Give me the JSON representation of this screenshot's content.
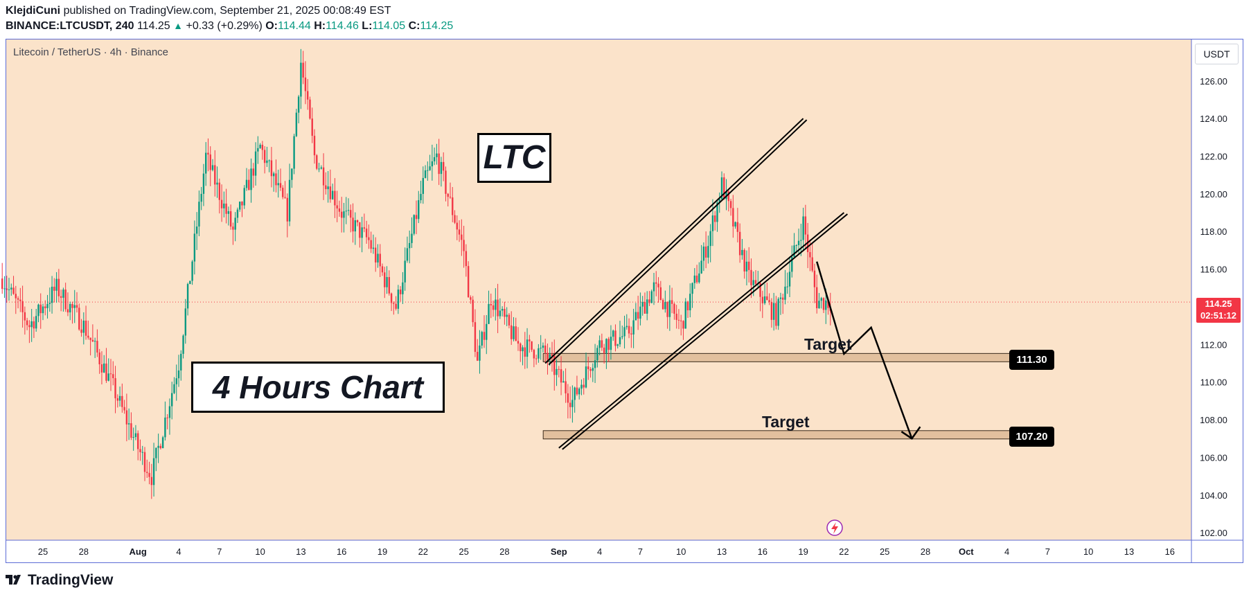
{
  "header": {
    "author": "KlejdiCuni",
    "published_text": "published on TradingView.com, September 21, 2025 00:08:49 EST",
    "symbol": "BINANCE:LTCUSDT, 240",
    "last": "114.25",
    "change": "+0.33 (+0.29%)",
    "o_label": "O:",
    "o": "114.44",
    "h_label": "H:",
    "h": "114.46",
    "l_label": "L:",
    "l": "114.05",
    "c_label": "C:",
    "c": "114.25"
  },
  "legend": "Litecoin / TetherUS · 4h · Binance",
  "currency": "USDT",
  "annotations": {
    "title": "LTC",
    "subtitle": "4 Hours Chart",
    "target1_label": "Target",
    "target2_label": "Target",
    "target1_value": "111.30",
    "target2_value": "107.20"
  },
  "price_tag": {
    "price": "114.25",
    "countdown": "02:51:12"
  },
  "footer": {
    "brand": "TradingView"
  },
  "colors": {
    "background": "#fbe3ca",
    "up": "#089981",
    "down": "#f23645",
    "zone": "#d9b48f",
    "frame": "#5b6bd6"
  },
  "icons": [
    "tradingview-logo-icon",
    "lightning-icon"
  ],
  "chart_data": {
    "type": "candlestick",
    "symbol": "LTCUSDT",
    "interval": "4h",
    "ylim": [
      101.6,
      128.2
    ],
    "y_ticks": [
      "102.00",
      "104.00",
      "106.00",
      "108.00",
      "110.00",
      "112.00",
      "114.00",
      "116.00",
      "118.00",
      "120.00",
      "122.00",
      "124.00",
      "126.00"
    ],
    "x_ticks": [
      "25",
      "28",
      "Aug",
      "4",
      "7",
      "10",
      "13",
      "16",
      "19",
      "22",
      "25",
      "28",
      "Sep",
      "4",
      "7",
      "10",
      "13",
      "16",
      "19",
      "22",
      "25",
      "28",
      "Oct",
      "4",
      "7",
      "10",
      "13",
      "16"
    ],
    "current_price": 114.25,
    "key_closes": [
      {
        "x": "Jul 22",
        "y": 115.5
      },
      {
        "x": "Jul 24",
        "y": 113.0
      },
      {
        "x": "Jul 26",
        "y": 115.0
      },
      {
        "x": "Jul 28",
        "y": 113.0
      },
      {
        "x": "Jul 30",
        "y": 110.0
      },
      {
        "x": "Aug 1",
        "y": 106.5
      },
      {
        "x": "Aug 2",
        "y": 105.0
      },
      {
        "x": "Aug 4",
        "y": 111.0
      },
      {
        "x": "Aug 6",
        "y": 122.0
      },
      {
        "x": "Aug 8",
        "y": 118.0
      },
      {
        "x": "Aug 10",
        "y": 122.5
      },
      {
        "x": "Aug 12",
        "y": 119.0
      },
      {
        "x": "Aug 13",
        "y": 127.0
      },
      {
        "x": "Aug 14",
        "y": 122.0
      },
      {
        "x": "Aug 16",
        "y": 119.0
      },
      {
        "x": "Aug 18",
        "y": 117.5
      },
      {
        "x": "Aug 20",
        "y": 114.0
      },
      {
        "x": "Aug 22",
        "y": 120.5
      },
      {
        "x": "Aug 23",
        "y": 122.0
      },
      {
        "x": "Aug 25",
        "y": 117.0
      },
      {
        "x": "Aug 26",
        "y": 111.0
      },
      {
        "x": "Aug 27",
        "y": 114.5
      },
      {
        "x": "Aug 29",
        "y": 112.0
      },
      {
        "x": "Aug 31",
        "y": 111.5
      },
      {
        "x": "Sep 2",
        "y": 109.0
      },
      {
        "x": "Sep 4",
        "y": 112.0
      },
      {
        "x": "Sep 6",
        "y": 112.5
      },
      {
        "x": "Sep 8",
        "y": 115.0
      },
      {
        "x": "Sep 10",
        "y": 113.0
      },
      {
        "x": "Sep 12",
        "y": 117.5
      },
      {
        "x": "Sep 13",
        "y": 120.5
      },
      {
        "x": "Sep 15",
        "y": 115.5
      },
      {
        "x": "Sep 17",
        "y": 113.5
      },
      {
        "x": "Sep 19",
        "y": 118.5
      },
      {
        "x": "Sep 20",
        "y": 114.3
      },
      {
        "x": "Sep 21",
        "y": 114.25
      }
    ],
    "trend_lines": [
      {
        "from": {
          "x": "Aug 31",
          "y": 111.0
        },
        "to": {
          "x": "Sep 19",
          "y": 124.0
        }
      },
      {
        "from": {
          "x": "Sep 1",
          "y": 106.5
        },
        "to": {
          "x": "Sep 22",
          "y": 119.0
        }
      }
    ],
    "zones": [
      {
        "label": "Target",
        "value": 111.3,
        "from": "Aug 31"
      },
      {
        "label": "Target",
        "value": 107.2,
        "from": "Aug 31"
      }
    ],
    "projection_path": [
      {
        "x": "Sep 20",
        "y": 116.4
      },
      {
        "x": "Sep 22",
        "y": 111.5
      },
      {
        "x": "Sep 24",
        "y": 112.9
      },
      {
        "x": "Sep 27",
        "y": 107.0
      }
    ]
  }
}
